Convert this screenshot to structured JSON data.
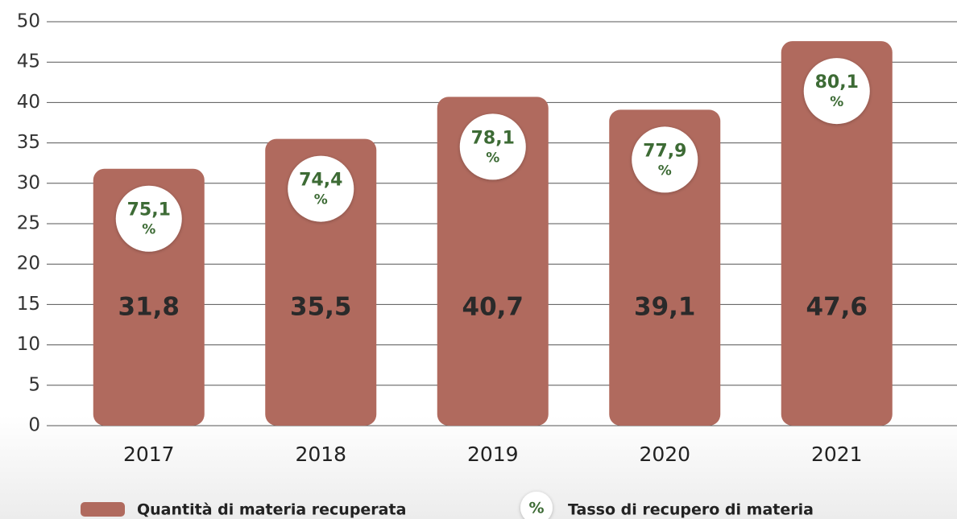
{
  "chart_data": {
    "type": "bar",
    "categories": [
      "2017",
      "2018",
      "2019",
      "2020",
      "2021"
    ],
    "series": [
      {
        "name": "Quantità di materia recuperata",
        "color": "#b06a5e",
        "values": [
          31.8,
          35.5,
          40.7,
          39.1,
          47.6
        ],
        "value_labels": [
          "31,8",
          "35,5",
          "40,7",
          "39,1",
          "47,6"
        ]
      },
      {
        "name": "Tasso di recupero di materia",
        "color": "#3d6b35",
        "values": [
          75.1,
          74.4,
          78.1,
          77.9,
          80.1
        ],
        "value_labels": [
          "75,1",
          "74,4",
          "78,1",
          "77,9",
          "80,1"
        ],
        "unit": "%"
      }
    ],
    "ylim": [
      0,
      50
    ],
    "yticks": [
      0,
      5,
      10,
      15,
      20,
      25,
      30,
      35,
      40,
      45,
      50
    ],
    "grid": true
  }
}
